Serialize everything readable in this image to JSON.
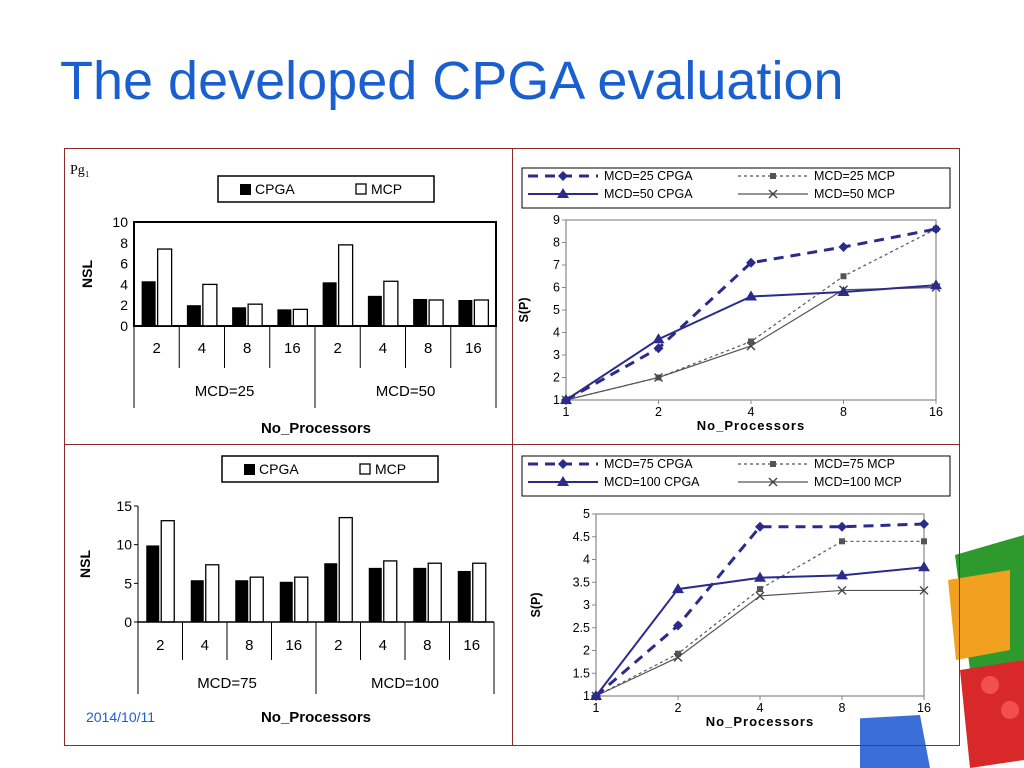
{
  "slide": {
    "title": "The developed CPGA evaluation",
    "date": "2014/10/11"
  },
  "colors": {
    "title": "#1a5fd0",
    "border": "#8a2a2a",
    "series_a": "#2b2b8c",
    "series_b": "#555555"
  },
  "chart_data": [
    {
      "type": "bar",
      "label": "Pg₁",
      "ylabel": "NSL",
      "xlabel": "No_Processors",
      "ylim": [
        0,
        10
      ],
      "yticks": [
        0,
        2,
        4,
        6,
        8,
        10
      ],
      "groups": [
        "MCD=25",
        "MCD=50"
      ],
      "categories": [
        "2",
        "4",
        "8",
        "16",
        "2",
        "4",
        "8",
        "16"
      ],
      "series": [
        {
          "name": "CPGA",
          "values": [
            4.3,
            2.0,
            1.8,
            1.6,
            4.2,
            2.9,
            2.6,
            2.5
          ]
        },
        {
          "name": "MCP",
          "values": [
            7.4,
            4.0,
            2.1,
            1.6,
            7.8,
            4.3,
            2.5,
            2.5
          ]
        }
      ]
    },
    {
      "type": "line",
      "ylabel": "S(P)",
      "xlabel": "No_Processors",
      "x": [
        "1",
        "2",
        "4",
        "8",
        "16"
      ],
      "ylim": [
        1,
        9
      ],
      "yticks": [
        1,
        2,
        3,
        4,
        5,
        6,
        7,
        8,
        9
      ],
      "series": [
        {
          "name": "MCD=25 CPGA",
          "values": [
            1,
            3.3,
            7.1,
            7.8,
            8.6
          ]
        },
        {
          "name": "MCD=25 MCP",
          "values": [
            1,
            2.0,
            3.6,
            6.5,
            8.6
          ]
        },
        {
          "name": "MCD=50 CPGA",
          "values": [
            1,
            3.7,
            5.6,
            5.8,
            6.1
          ]
        },
        {
          "name": "MCD=50 MCP",
          "values": [
            1,
            2.0,
            3.4,
            5.9,
            6.0
          ]
        }
      ]
    },
    {
      "type": "bar",
      "ylabel": "NSL",
      "xlabel": "No_Processors",
      "ylim": [
        0,
        15
      ],
      "yticks": [
        0,
        5,
        10,
        15
      ],
      "groups": [
        "MCD=75",
        "MCD=100"
      ],
      "categories": [
        "2",
        "4",
        "8",
        "16",
        "2",
        "4",
        "8",
        "16"
      ],
      "series": [
        {
          "name": "CPGA",
          "values": [
            9.9,
            5.4,
            5.4,
            5.2,
            7.6,
            7.0,
            7.0,
            6.6
          ]
        },
        {
          "name": "MCP",
          "values": [
            13.1,
            7.4,
            5.8,
            5.8,
            13.5,
            7.9,
            7.6,
            7.6
          ]
        }
      ]
    },
    {
      "type": "line",
      "ylabel": "S(P)",
      "xlabel": "No_Processors",
      "x": [
        "1",
        "2",
        "4",
        "8",
        "16"
      ],
      "ylim": [
        1,
        5
      ],
      "yticks": [
        "1",
        "1.5",
        "2",
        "2.5",
        "3",
        "3.5",
        "4",
        "4.5",
        "5"
      ],
      "series": [
        {
          "name": "MCD=75 CPGA",
          "values": [
            1,
            2.55,
            4.72,
            4.72,
            4.78
          ]
        },
        {
          "name": "MCD=75 MCP",
          "values": [
            1,
            1.93,
            3.35,
            4.4,
            4.4
          ]
        },
        {
          "name": "MCD=100 CPGA",
          "values": [
            1,
            3.35,
            3.6,
            3.65,
            3.83
          ]
        },
        {
          "name": "MCD=100 MCP",
          "values": [
            1,
            1.85,
            3.2,
            3.32,
            3.32
          ]
        }
      ]
    }
  ]
}
